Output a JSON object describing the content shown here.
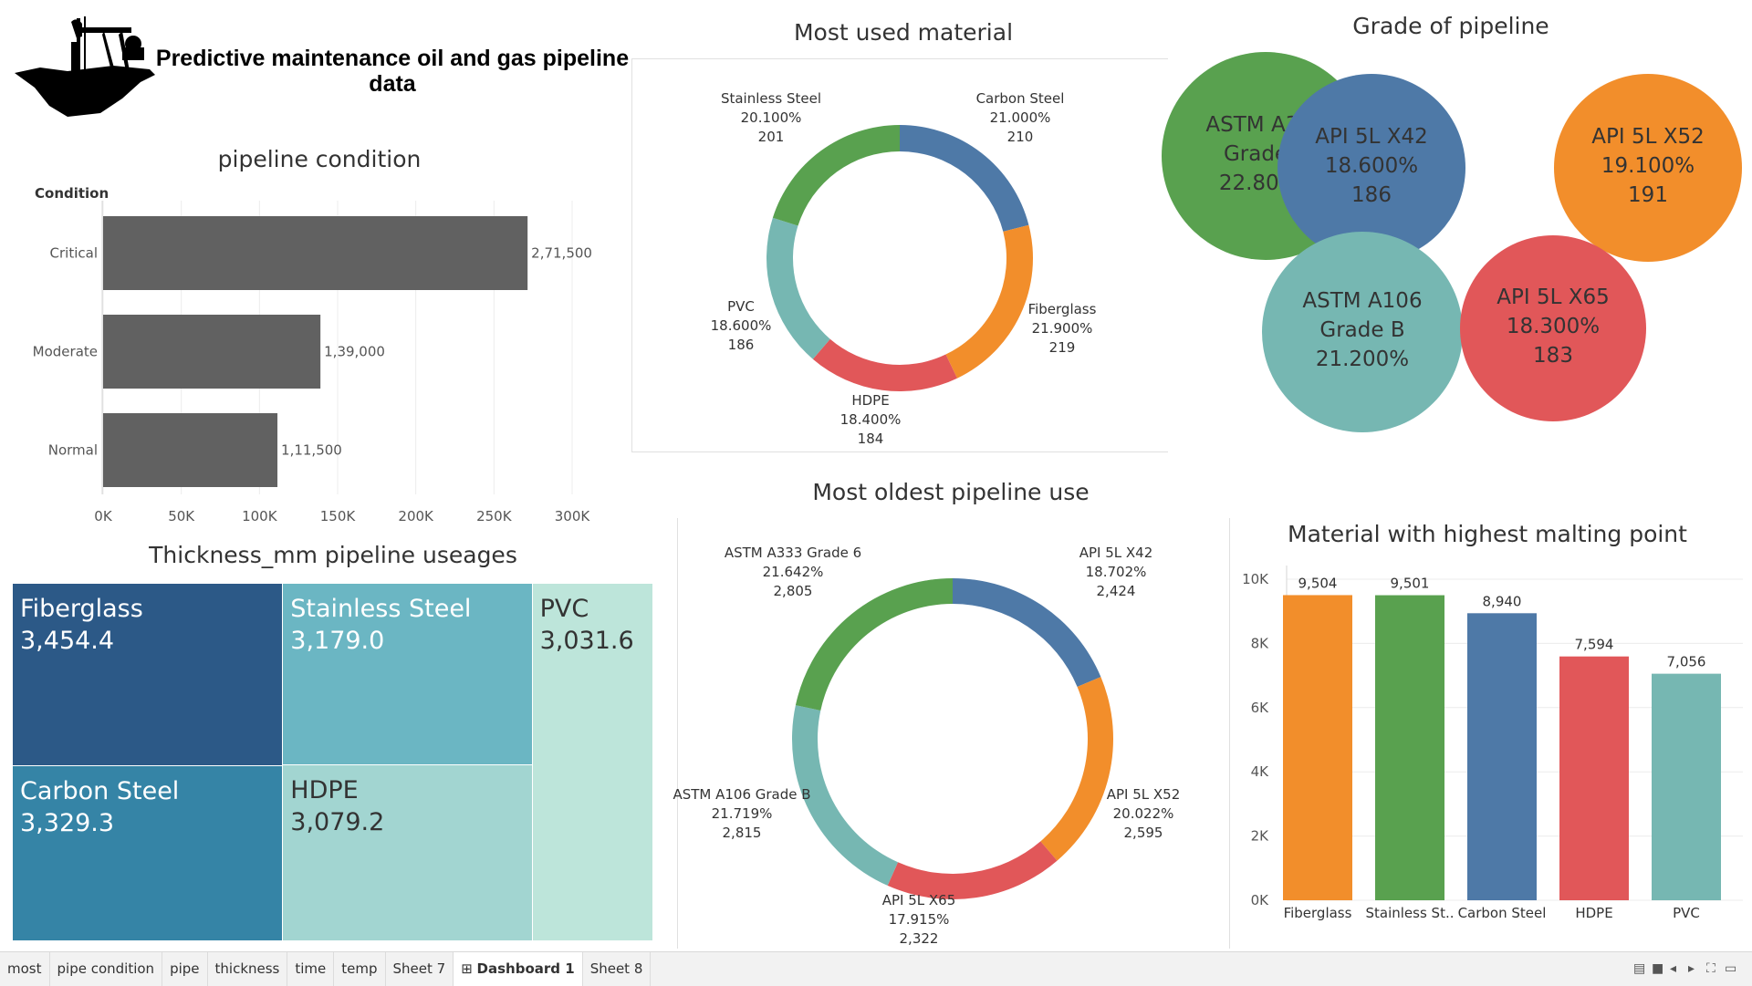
{
  "header": {
    "title_line1": "Predictive maintenance oil and gas pipeline",
    "title_line2": "data",
    "logo_icon": "oil-pumpjack-icon"
  },
  "pipeline_condition": {
    "title": "pipeline condition",
    "axis_title": "Condition",
    "tick_labels": [
      "0K",
      "50K",
      "100K",
      "150K",
      "200K",
      "250K",
      "300K"
    ]
  },
  "most_used_material": {
    "title": "Most used material"
  },
  "grade_of_pipeline": {
    "title": "Grade of pipeline"
  },
  "thickness": {
    "title": "Thickness_mm pipeline useages"
  },
  "oldest_pipeline": {
    "title": "Most oldest pipeline use"
  },
  "melting_point": {
    "title": "Material with highest malting point",
    "tick_labels": [
      "10K",
      "8K",
      "6K",
      "4K",
      "2K",
      "0K"
    ]
  },
  "chart_data": [
    {
      "id": "pipeline-condition",
      "type": "bar",
      "orientation": "horizontal",
      "title": "pipeline condition",
      "ylabel": "Condition",
      "categories": [
        "Critical",
        "Moderate",
        "Normal"
      ],
      "values": [
        271500,
        139000,
        111500
      ],
      "value_labels": [
        "2,71,500",
        "1,39,000",
        "1,11,500"
      ],
      "xlim": [
        0,
        300000
      ],
      "color": "#616161",
      "grid": true
    },
    {
      "id": "most-used-material",
      "type": "pie",
      "style": "donut",
      "title": "Most used material",
      "slices": [
        {
          "name": "Carbon Steel",
          "percent": "21.000%",
          "value": 210,
          "color": "#4e79a7"
        },
        {
          "name": "Fiberglass",
          "percent": "21.900%",
          "value": 219,
          "color": "#f28e2b"
        },
        {
          "name": "HDPE",
          "percent": "18.400%",
          "value": 184,
          "color": "#e15759"
        },
        {
          "name": "PVC",
          "percent": "18.600%",
          "value": 186,
          "color": "#76b7b2"
        },
        {
          "name": "Stainless Steel",
          "percent": "20.100%",
          "value": 201,
          "color": "#59a14f"
        }
      ]
    },
    {
      "id": "grade-of-pipeline",
      "type": "bubble",
      "title": "Grade of pipeline",
      "bubbles": [
        {
          "line1": "ASTM A333",
          "line2": "Grade 6",
          "line3": "22.800%",
          "value": 228,
          "color": "#59a14f"
        },
        {
          "line1": "API 5L X42",
          "line2": "18.600%",
          "line3": "186",
          "value": 186,
          "color": "#4e79a7"
        },
        {
          "line1": "API 5L X52",
          "line2": "19.100%",
          "line3": "191",
          "value": 191,
          "color": "#f28e2b"
        },
        {
          "line1": "ASTM A106",
          "line2": "Grade B",
          "line3": "21.200%",
          "value": 212,
          "color": "#76b7b2"
        },
        {
          "line1": "API 5L X65",
          "line2": "18.300%",
          "line3": "183",
          "value": 183,
          "color": "#e15759"
        }
      ]
    },
    {
      "id": "thickness-treemap",
      "type": "treemap",
      "title": "Thickness_mm pipeline useages",
      "items": [
        {
          "name": "Fiberglass",
          "value_label": "3,454.4",
          "value": 3454.4,
          "color": "#2c5987",
          "text": "#ffffff"
        },
        {
          "name": "Carbon Steel",
          "value_label": "3,329.3",
          "value": 3329.3,
          "color": "#3584a6",
          "text": "#ffffff"
        },
        {
          "name": "Stainless Steel",
          "value_label": "3,179.0",
          "value": 3179.0,
          "color": "#6bb6c3",
          "text": "#ffffff"
        },
        {
          "name": "HDPE",
          "value_label": "3,079.2",
          "value": 3079.2,
          "color": "#a2d5d1",
          "text": "#333333"
        },
        {
          "name": "PVC",
          "value_label": "3,031.6",
          "value": 3031.6,
          "color": "#bde5da",
          "text": "#333333"
        }
      ]
    },
    {
      "id": "most-oldest-pipeline",
      "type": "pie",
      "style": "donut",
      "title": "Most oldest pipeline use",
      "slices": [
        {
          "name": "API 5L X42",
          "percent": "18.702%",
          "value": 2424,
          "value_label": "2,424",
          "color": "#4e79a7"
        },
        {
          "name": "API 5L X52",
          "percent": "20.022%",
          "value": 2595,
          "value_label": "2,595",
          "color": "#f28e2b"
        },
        {
          "name": "API 5L X65",
          "percent": "17.915%",
          "value": 2322,
          "value_label": "2,322",
          "color": "#e15759"
        },
        {
          "name": "ASTM A106 Grade B",
          "percent": "21.719%",
          "value": 2815,
          "value_label": "2,815",
          "color": "#76b7b2"
        },
        {
          "name": "ASTM A333 Grade 6",
          "percent": "21.642%",
          "value": 2805,
          "value_label": "2,805",
          "color": "#59a14f"
        }
      ]
    },
    {
      "id": "highest-melting-point",
      "type": "bar",
      "title": "Material with highest malting point",
      "categories": [
        "Fiberglass",
        "Stainless St..",
        "Carbon Steel",
        "HDPE",
        "PVC"
      ],
      "values": [
        9504,
        9501,
        8940,
        7594,
        7056
      ],
      "value_labels": [
        "9,504",
        "9,501",
        "8,940",
        "7,594",
        "7,056"
      ],
      "colors": [
        "#f28e2b",
        "#59a14f",
        "#4e79a7",
        "#e15759",
        "#76b7b2"
      ],
      "ylim": [
        0,
        10000
      ],
      "grid": true
    }
  ],
  "tabs": [
    {
      "label": "most",
      "active": false
    },
    {
      "label": "pipe condition",
      "active": false
    },
    {
      "label": "pipe",
      "active": false
    },
    {
      "label": "thickness",
      "active": false
    },
    {
      "label": "time",
      "active": false
    },
    {
      "label": "temp",
      "active": false
    },
    {
      "label": "Sheet 7",
      "active": false
    },
    {
      "label": "Dashboard 1",
      "active": true,
      "icon": "dashboard-grid-icon"
    },
    {
      "label": "Sheet 8",
      "active": false
    }
  ],
  "status_icons": [
    "grid-view-icon",
    "filmstrip-icon",
    "previous-icon",
    "next-icon",
    "fit-icon",
    "presentation-icon"
  ]
}
